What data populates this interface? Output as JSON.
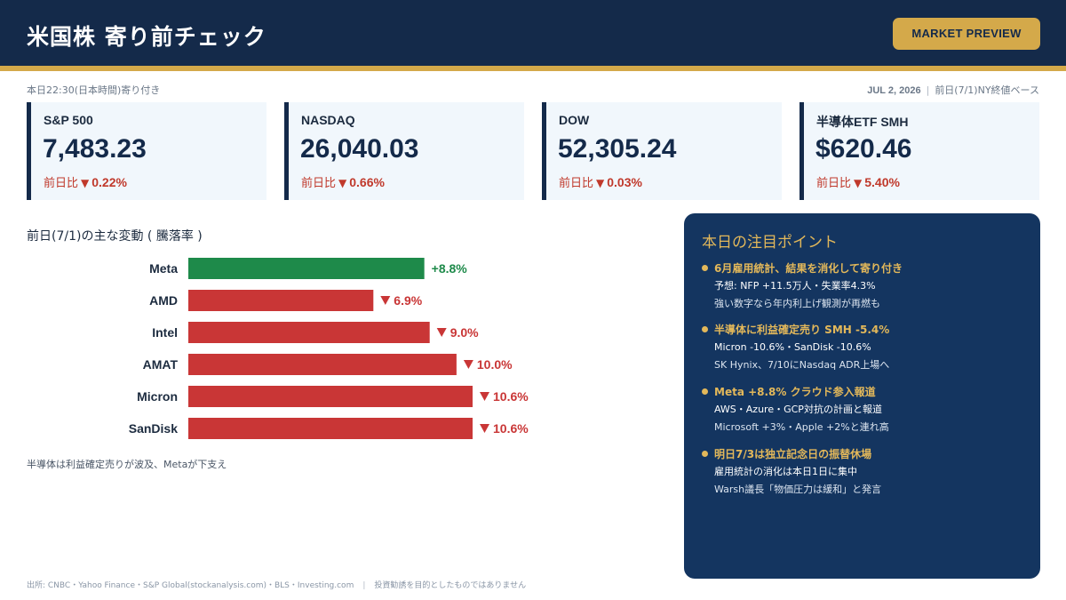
{
  "header": {
    "title": "米国株 寄り前チェック",
    "badge": "MARKET PREVIEW"
  },
  "subheader": {
    "left": "本日22:30(日本時間)寄り付き",
    "date": "JUL 2, 2026",
    "right": "前日(7/1)NY終値ベース"
  },
  "cards": [
    {
      "name": "S&P 500",
      "value": "7,483.23",
      "change_label": "前日比",
      "change": "0.22%"
    },
    {
      "name": "NASDAQ",
      "value": "26,040.03",
      "change_label": "前日比",
      "change": "0.66%"
    },
    {
      "name": "DOW",
      "value": "52,305.24",
      "change_label": "前日比",
      "change": "0.03%"
    },
    {
      "name": "半導体ETF SMH",
      "value": "$620.46",
      "change_label": "前日比",
      "change": "5.40%"
    }
  ],
  "colors": {
    "navy": "#142a4a",
    "gold": "#d4a94a",
    "up": "#1e8a4a",
    "down": "#c93636"
  },
  "chart_title": "前日(7/1)の主な変動 ( 騰落率 )",
  "chart_note": "半導体は利益確定売りが波及、Metaが下支え",
  "chart_data": {
    "type": "bar",
    "orientation": "horizontal",
    "categories": [
      "Meta",
      "AMD",
      "Intel",
      "AMAT",
      "Micron",
      "SanDisk"
    ],
    "values": [
      8.8,
      -6.9,
      -9.0,
      -10.0,
      -10.6,
      -10.6
    ],
    "labels": [
      "+8.8%",
      "6.9%",
      "9.0%",
      "10.0%",
      "10.6%",
      "10.6%"
    ],
    "title": "",
    "xlabel": "",
    "ylabel": "",
    "unit": "%"
  },
  "panel": {
    "title": "本日の注目ポイント",
    "points": [
      {
        "head": "6月雇用統計、結果を消化して寄り付き",
        "line1": "予想: NFP +11.5万人・失業率4.3%",
        "line2": "強い数字なら年内利上げ観測が再燃も"
      },
      {
        "head": "半導体に利益確定売り SMH -5.4%",
        "line1": "Micron -10.6%・SanDisk -10.6%",
        "line2": "SK Hynix、7/10にNasdaq ADR上場へ"
      },
      {
        "head": "Meta +8.8% クラウド参入報道",
        "line1": "AWS・Azure・GCP対抗の計画と報道",
        "line2": "Microsoft +3%・Apple +2%と連れ高"
      },
      {
        "head": "明日7/3は独立記念日の振替休場",
        "line1": "雇用統計の消化は本日1日に集中",
        "line2": "Warsh議長「物価圧力は緩和」と発言"
      }
    ]
  },
  "footer": {
    "sources": "出所: CNBC・Yahoo Finance・S&P Global(stockanalysis.com)・BLS・Investing.com",
    "disclaimer": "投資勧誘を目的としたものではありません"
  }
}
